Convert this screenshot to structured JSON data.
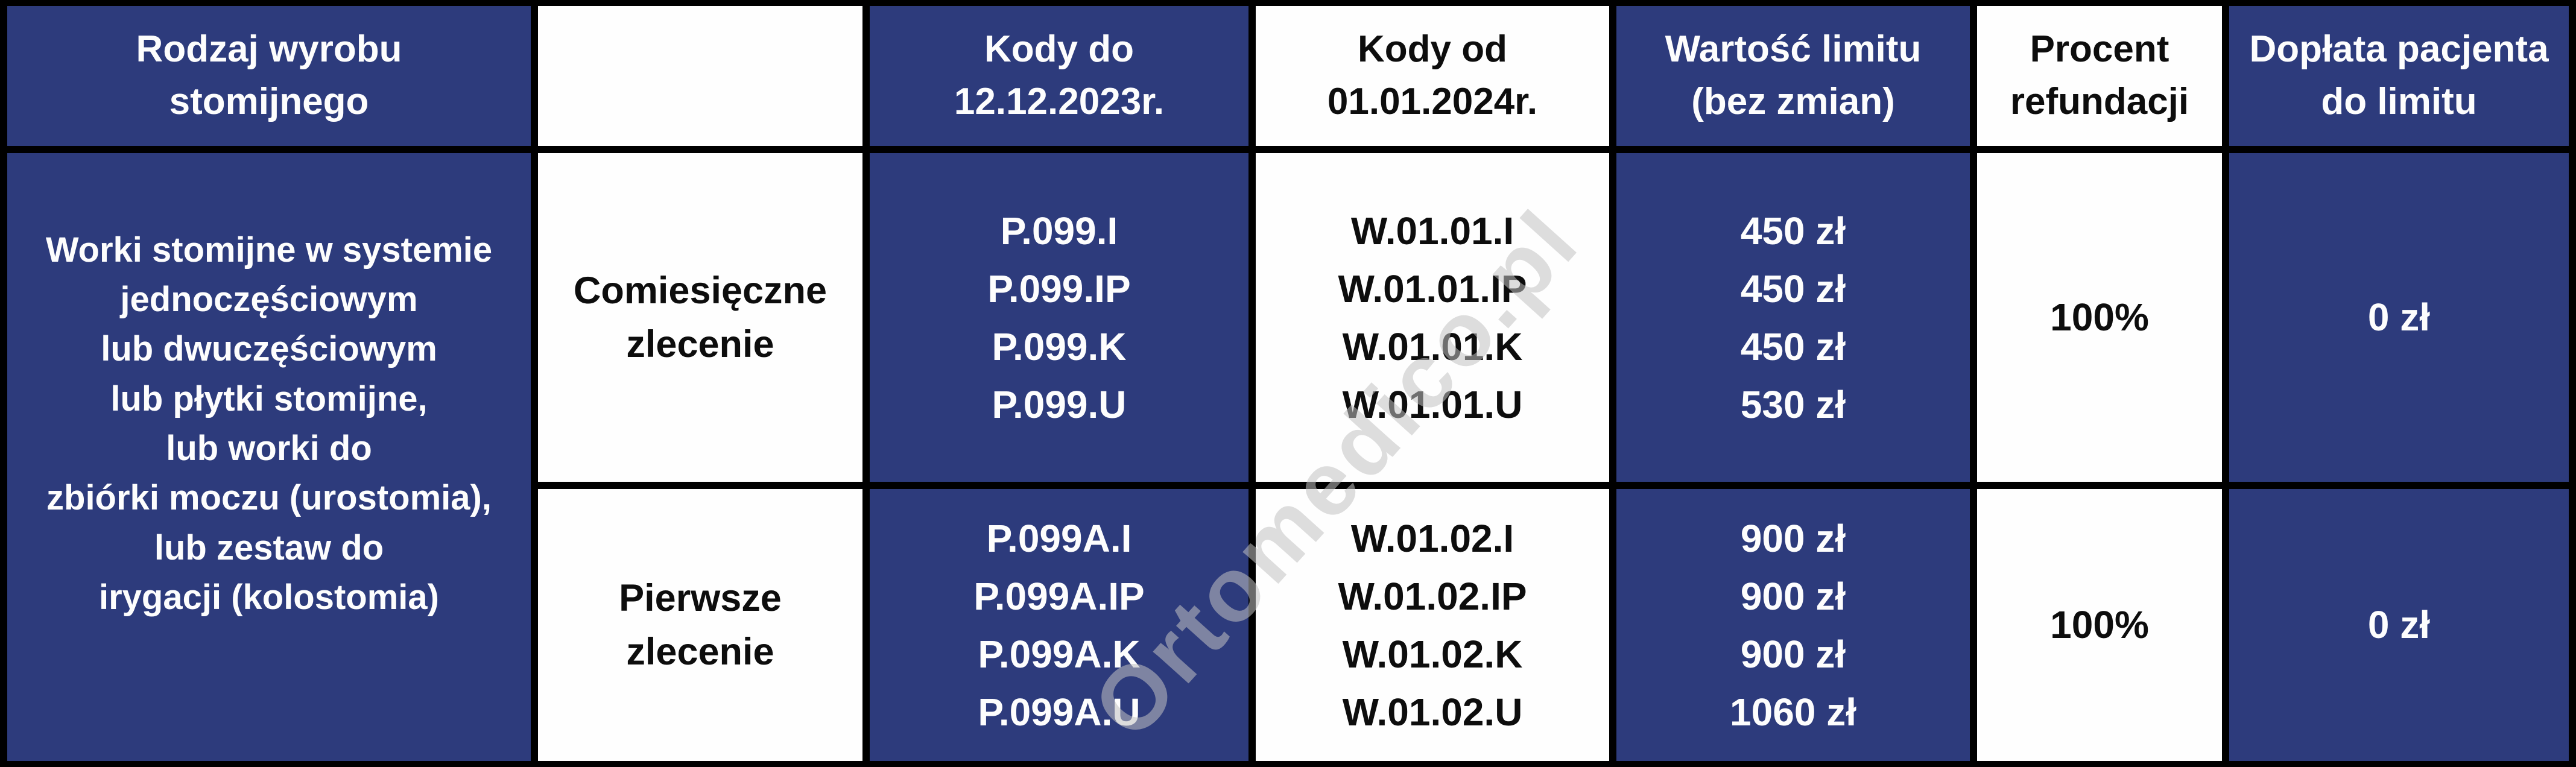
{
  "colors": {
    "cell_blue": "#2d3b7c",
    "cell_white": "#fefefe",
    "border_black": "#000000",
    "text_on_blue": "#fdfdfd",
    "text_on_white": "#0d0d0d",
    "watermark_gray": "#c1c1c1"
  },
  "watermark": {
    "text": "Ortomedico.pl"
  },
  "table": {
    "headers": [
      {
        "id": "product",
        "label": "Rodzaj wyrobu\nstomijnego"
      },
      {
        "id": "order",
        "label": ""
      },
      {
        "id": "codes_old",
        "label": "Kody do\n12.12.2023r."
      },
      {
        "id": "codes_new",
        "label": "Kody od\n01.01.2024r."
      },
      {
        "id": "limit",
        "label": "Wartość limitu\n(bez zmian)"
      },
      {
        "id": "refund",
        "label": "Procent\nrefundacji"
      },
      {
        "id": "copay",
        "label": "Dopłata pacjenta\ndo limitu"
      }
    ],
    "product_cell": "Worki stomijne w systemie\njednoczęściowym\nlub dwuczęściowym\nlub płytki stomijne,\nlub worki do\nzbiórki moczu (urostomia),\nlub zestaw do\nirygacji (kolostomia)",
    "rows": [
      {
        "order_type": "Comiesięczne\nzlecenie",
        "codes_old": "P.099.I\nP.099.IP\nP.099.K\nP.099.U",
        "codes_new": "W.01.01.I\nW.01.01.IP\nW.01.01.K\nW.01.01.U",
        "limit_values": "450 zł\n450 zł\n450 zł\n530 zł",
        "refund_percent": "100%",
        "patient_copay": "0 zł"
      },
      {
        "order_type": "Pierwsze\nzlecenie",
        "codes_old": "P.099A.I\nP.099A.IP\nP.099A.K\nP.099A.U",
        "codes_new": "W.01.02.I\nW.01.02.IP\nW.01.02.K\nW.01.02.U",
        "limit_values": "900 zł\n900 zł\n900 zł\n1060 zł",
        "refund_percent": "100%",
        "patient_copay": "0 zł"
      }
    ]
  }
}
